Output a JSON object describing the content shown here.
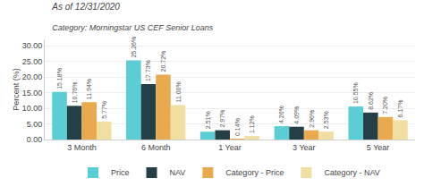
{
  "chart_data": {
    "type": "bar",
    "title": "As of 12/31/2020",
    "subtitle": "Category: Morningstar US CEF Senior Loans",
    "categories": [
      "3 Month",
      "6 Month",
      "1 Year",
      "3 Year",
      "5 Year"
    ],
    "series": [
      {
        "name": "Price",
        "color": "#5acdd5",
        "values": [
          15.18,
          25.26,
          2.51,
          4.26,
          10.55
        ],
        "value_labels": [
          "15.18%",
          "25.26%",
          "2.51%",
          "4.26%",
          "10.55%"
        ]
      },
      {
        "name": "NAV",
        "color": "#253f47",
        "values": [
          10.76,
          17.73,
          2.97,
          4.09,
          8.62
        ],
        "value_labels": [
          "10.76%",
          "17.73%",
          "2.97%",
          "4.09%",
          "8.62%"
        ]
      },
      {
        "name": "Category - Price",
        "color": "#e9a94e",
        "values": [
          11.94,
          20.72,
          0.14,
          2.96,
          7.2
        ],
        "value_labels": [
          "11.94%",
          "20.72%",
          "0.14%",
          "2.96%",
          "7.20%"
        ]
      },
      {
        "name": "Category - NAV",
        "color": "#f0dfa0",
        "values": [
          5.77,
          11.0,
          1.12,
          2.53,
          6.17
        ],
        "value_labels": [
          "5.77%",
          "11.00%",
          "1.12%",
          "2.53%",
          "6.17%"
        ]
      }
    ],
    "ylabel": "Percent (%)",
    "ylim": [
      0,
      32
    ],
    "yticks": [
      {
        "value": 0,
        "label": "0.00"
      },
      {
        "value": 5,
        "label": "5.00"
      },
      {
        "value": 10,
        "label": "10.00"
      },
      {
        "value": 15,
        "label": "15.00"
      },
      {
        "value": 20,
        "label": "20.00"
      },
      {
        "value": 25,
        "label": "25.00"
      },
      {
        "value": 30,
        "label": "30.00"
      }
    ],
    "grid": true,
    "legend": "bottom",
    "data_labels": true
  }
}
